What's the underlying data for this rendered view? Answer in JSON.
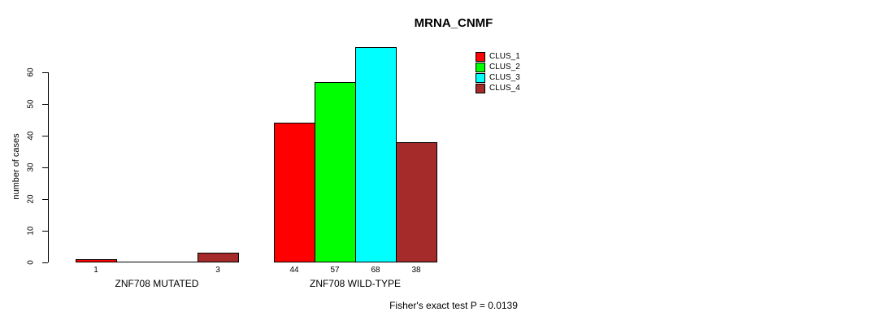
{
  "chart_data": {
    "type": "bar",
    "title": "MRNA_CNMF",
    "ylabel": "number of cases",
    "yticks": [
      0,
      10,
      20,
      30,
      40,
      50,
      60
    ],
    "ylim": [
      0,
      68
    ],
    "grid": false,
    "legend_position": "top-right",
    "series": [
      {
        "name": "CLUS_1",
        "color": "#ff0000"
      },
      {
        "name": "CLUS_2",
        "color": "#00ff00"
      },
      {
        "name": "CLUS_3",
        "color": "#00ffff"
      },
      {
        "name": "CLUS_4",
        "color": "#a52a2a"
      }
    ],
    "groups": [
      {
        "label": "ZNF708 MUTATED",
        "values": [
          1,
          0,
          0,
          3
        ]
      },
      {
        "label": "ZNF708 WILD-TYPE",
        "values": [
          44,
          57,
          68,
          38
        ]
      }
    ],
    "bar_value_labels": [
      1,
      3,
      44,
      57,
      68,
      38
    ],
    "annotation": "Fisher's exact test P = 0.0139"
  }
}
